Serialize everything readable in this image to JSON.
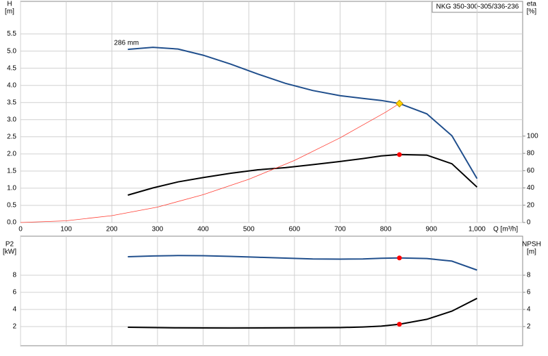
{
  "legend_box": "NKG 350-300-305/336-236",
  "chart_data": [
    {
      "type": "line",
      "ylabel": [
        "H",
        "[m]"
      ],
      "y2label": [
        "eta",
        "[%]"
      ],
      "xlabel": "Q [m³/h]",
      "annotations": [
        {
          "text": "286 mm",
          "x": 235,
          "y": 5.05
        }
      ],
      "xlim": [
        0,
        1100
      ],
      "ylim": [
        0,
        6.45
      ],
      "y2lim": [
        0,
        256
      ],
      "grid": true,
      "show_x_labels": true,
      "xticks": [
        0,
        100,
        200,
        300,
        400,
        500,
        600,
        700,
        800,
        900,
        {
          "value": 1000,
          "label": "1,000"
        }
      ],
      "yticks": [
        {
          "value": 0,
          "label": "0.0"
        },
        0.5,
        {
          "value": 1,
          "label": "1.0"
        },
        1.5,
        {
          "value": 2,
          "label": "2.0"
        },
        2.5,
        {
          "value": 3,
          "label": "3.0"
        },
        3.5,
        {
          "value": 4,
          "label": "4.0"
        },
        4.5,
        {
          "value": 5,
          "label": "5.0"
        },
        5.5
      ],
      "y2ticks": [
        0,
        20,
        40,
        60,
        80,
        100
      ],
      "series": [
        {
          "color": "#1f4e8c",
          "width": 2,
          "x": [
            235,
            290,
            345,
            400,
            460,
            520,
            580,
            640,
            700,
            750,
            790,
            830,
            890,
            945,
            1000
          ],
          "values": [
            5.05,
            5.11,
            5.06,
            4.88,
            4.62,
            4.33,
            4.06,
            3.85,
            3.7,
            3.62,
            3.56,
            3.47,
            3.17,
            2.53,
            1.28
          ]
        },
        {
          "color": "#000000",
          "width": 2,
          "axis": "y2",
          "x": [
            235,
            290,
            345,
            400,
            460,
            520,
            580,
            640,
            700,
            750,
            790,
            830,
            890,
            945,
            1000
          ],
          "values": [
            31.7,
            40,
            47,
            52,
            57,
            61,
            63.5,
            67,
            70.6,
            74,
            77,
            78.6,
            78,
            68,
            41
          ]
        },
        {
          "color": "#ff3b30",
          "width": 0.8,
          "x": [
            0,
            100,
            200,
            300,
            400,
            500,
            600,
            700,
            800,
            830
          ],
          "values": [
            0,
            0.05,
            0.2,
            0.45,
            0.81,
            1.26,
            1.81,
            2.47,
            3.22,
            3.47
          ]
        }
      ],
      "markers": [
        {
          "x": 830,
          "y": 3.47,
          "color": "#ffd400",
          "shape": "diamond"
        },
        {
          "x": 830,
          "y": 78.6,
          "axis": "y2",
          "color": "#ff0000",
          "shape": "dot"
        }
      ]
    },
    {
      "type": "line",
      "ylabel": [
        "P2",
        "[kW]"
      ],
      "y2label": [
        "NPSH",
        "[m]"
      ],
      "xlim": [
        0,
        1100
      ],
      "ylim": [
        -0.24,
        12.56
      ],
      "y2lim": [
        -0.24,
        12.56
      ],
      "grid": true,
      "show_x_labels": false,
      "xticks": [
        0,
        100,
        200,
        300,
        400,
        500,
        600,
        700,
        800,
        900,
        1000
      ],
      "yticks": [
        2,
        4,
        6,
        8
      ],
      "y2ticks": [
        2,
        4,
        6,
        8
      ],
      "series": [
        {
          "color": "#1f4e8c",
          "width": 2,
          "x": [
            235,
            290,
            345,
            400,
            460,
            520,
            580,
            640,
            700,
            750,
            790,
            830,
            890,
            945,
            1000
          ],
          "values": [
            10.16,
            10.25,
            10.3,
            10.28,
            10.2,
            10.1,
            10.0,
            9.9,
            9.88,
            9.9,
            9.98,
            10.02,
            9.95,
            9.65,
            8.6
          ]
        },
        {
          "color": "#000000",
          "width": 2,
          "axis": "y2",
          "x": [
            235,
            345,
            460,
            580,
            700,
            750,
            790,
            830,
            890,
            945,
            1000
          ],
          "values": [
            1.92,
            1.85,
            1.83,
            1.85,
            1.88,
            1.95,
            2.05,
            2.27,
            2.85,
            3.8,
            5.3
          ]
        }
      ],
      "markers": [
        {
          "x": 830,
          "y": 10.02,
          "color": "#ff0000",
          "shape": "dot"
        },
        {
          "x": 830,
          "y": 2.27,
          "axis": "y2",
          "color": "#ff0000",
          "shape": "dot"
        }
      ]
    }
  ]
}
